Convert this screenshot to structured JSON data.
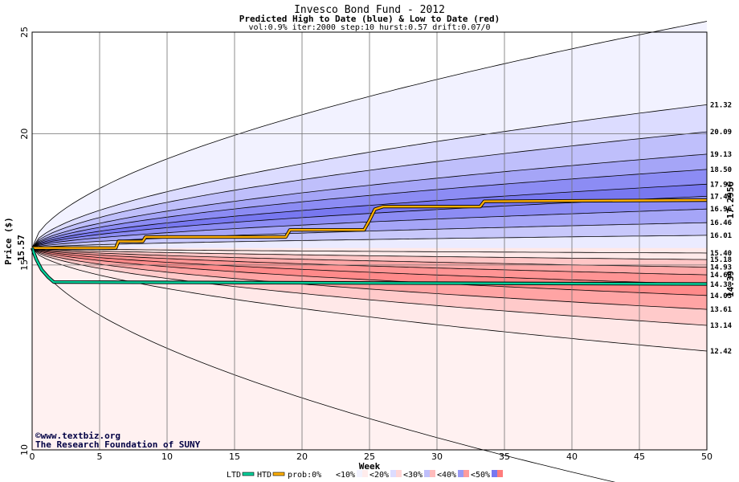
{
  "chart_data": {
    "type": "area",
    "title": "Invesco Bond Fund - 2012",
    "subtitle": "Predicted High to Date (blue) &  Low to Date (red)",
    "params": "vol:0.9% iter:2000 step:10 hurst:0.57 drift:0.07/0",
    "xlabel": "Week",
    "ylabel": "Price ($)",
    "xlim": [
      0,
      50
    ],
    "ylim": [
      10,
      25
    ],
    "y_scale": "log",
    "xticks": [
      0,
      5,
      10,
      15,
      20,
      25,
      30,
      35,
      40,
      45,
      50
    ],
    "yticks": [
      10,
      15,
      20,
      25
    ],
    "grid": true,
    "start_price": 15.57,
    "start_price_label": "15.57",
    "high_bands": [
      {
        "name": "<10%",
        "end": 21.32,
        "label": "21.32",
        "color": "#f2f2ff"
      },
      {
        "name": "<20%",
        "end": 20.09,
        "label": "20.09",
        "color": "#dcdcff"
      },
      {
        "name": "<30%",
        "end": 19.13,
        "label": "19.13",
        "color": "#bfbffb"
      },
      {
        "name": "<30%",
        "end": 18.5,
        "label": "18.50",
        "color": "#a5a5f7"
      },
      {
        "name": "<40%",
        "end": 17.91,
        "label": "17.91",
        "color": "#8c8cf4"
      },
      {
        "name": "<50%",
        "end": 17.44,
        "label": "17.44",
        "color": "#7878f0"
      },
      {
        "name": "<40%",
        "end": 16.96,
        "label": "16.96",
        "color": "#8c8cf4"
      },
      {
        "name": "<30%",
        "end": 16.46,
        "label": "16.46",
        "color": "#a5a5f7"
      },
      {
        "name": "<20%",
        "end": 16.01,
        "label": "16.01",
        "color": "#c8c8fb"
      },
      {
        "name": "<10%",
        "end": 15.4,
        "label": "15.40",
        "color": "#ebebff"
      }
    ],
    "low_bands": [
      {
        "name": "<10%",
        "end": 15.18,
        "label": "15.18",
        "color": "#ffe9e9"
      },
      {
        "name": "<20%",
        "end": 14.93,
        "label": "14.93",
        "color": "#ffc6c6"
      },
      {
        "name": "<30%",
        "end": 14.68,
        "label": "14.68",
        "color": "#ffa8a8"
      },
      {
        "name": "<40%",
        "end": 14.38,
        "label": "14.38",
        "color": "#ff9494"
      },
      {
        "name": "<50%",
        "end": 14.03,
        "label": "14.03",
        "color": "#ff8a8a"
      },
      {
        "name": "<40%",
        "end": 13.61,
        "label": "13.61",
        "color": "#ffa4a4"
      },
      {
        "name": "<30%",
        "end": 13.14,
        "label": "13.14",
        "color": "#ffcaca"
      },
      {
        "name": "<20%",
        "end": 12.42,
        "label": "12.42",
        "color": "#ffe8e8"
      }
    ],
    "outer_high_end": 25.6,
    "outer_low_end": 8.9,
    "low_floor_color": "#fff1f1",
    "series": [
      {
        "name": "HTD",
        "color": "#ffb000",
        "end_label": "17.2956",
        "points": [
          [
            0,
            15.57
          ],
          [
            6.2,
            15.57
          ],
          [
            6.4,
            15.8
          ],
          [
            8.2,
            15.8
          ],
          [
            8.4,
            15.95
          ],
          [
            18.8,
            15.95
          ],
          [
            19.1,
            16.2
          ],
          [
            24.6,
            16.2
          ],
          [
            25.0,
            16.55
          ],
          [
            25.4,
            16.95
          ],
          [
            26.0,
            17.05
          ],
          [
            33.2,
            17.05
          ],
          [
            33.5,
            17.25
          ],
          [
            50,
            17.2956
          ]
        ]
      },
      {
        "name": "LTD",
        "color": "#00d09a",
        "end_label": "14.39",
        "points": [
          [
            0,
            15.57
          ],
          [
            0.3,
            15.2
          ],
          [
            0.7,
            14.85
          ],
          [
            1.2,
            14.6
          ],
          [
            1.6,
            14.45
          ],
          [
            50,
            14.39
          ]
        ]
      }
    ],
    "legend": {
      "position": "bottom",
      "items": [
        {
          "label": "LTD",
          "kind": "line",
          "color": "#00d09a"
        },
        {
          "label": "HTD",
          "kind": "line",
          "color": "#ffb000"
        },
        {
          "label": "prob:0%",
          "kind": "swatch",
          "colors": [
            "#ffffff",
            "#ffffff"
          ]
        },
        {
          "label": "<10%",
          "kind": "swatch",
          "colors": [
            "#f2f2ff",
            "#ffecec"
          ]
        },
        {
          "label": "<20%",
          "kind": "swatch",
          "colors": [
            "#dcdcff",
            "#ffd6d6"
          ]
        },
        {
          "label": "<30%",
          "kind": "swatch",
          "colors": [
            "#bfbffb",
            "#ffbcbc"
          ]
        },
        {
          "label": "<40%",
          "kind": "swatch",
          "colors": [
            "#9a9af4",
            "#ff9c9c"
          ]
        },
        {
          "label": "<50%",
          "kind": "swatch",
          "colors": [
            "#7878f0",
            "#ff7c7c"
          ]
        }
      ]
    },
    "credit_lines": [
      "©www.textbiz.org",
      "The Research Foundation of SUNY"
    ]
  }
}
